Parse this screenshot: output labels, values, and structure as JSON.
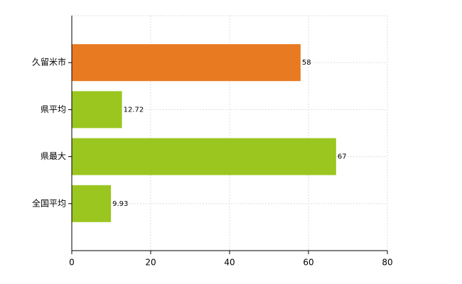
{
  "chart_data": {
    "type": "hbar",
    "categories": [
      "久留米市",
      "県平均",
      "県最大",
      "全国平均"
    ],
    "values": [
      58,
      12.72,
      67,
      9.93
    ],
    "colors": [
      "#e87a22",
      "#9ac61f",
      "#9ac61f",
      "#9ac61f"
    ],
    "xlim": [
      0,
      80
    ],
    "xticks": [
      0,
      20,
      40,
      60,
      80
    ],
    "grid": true
  }
}
